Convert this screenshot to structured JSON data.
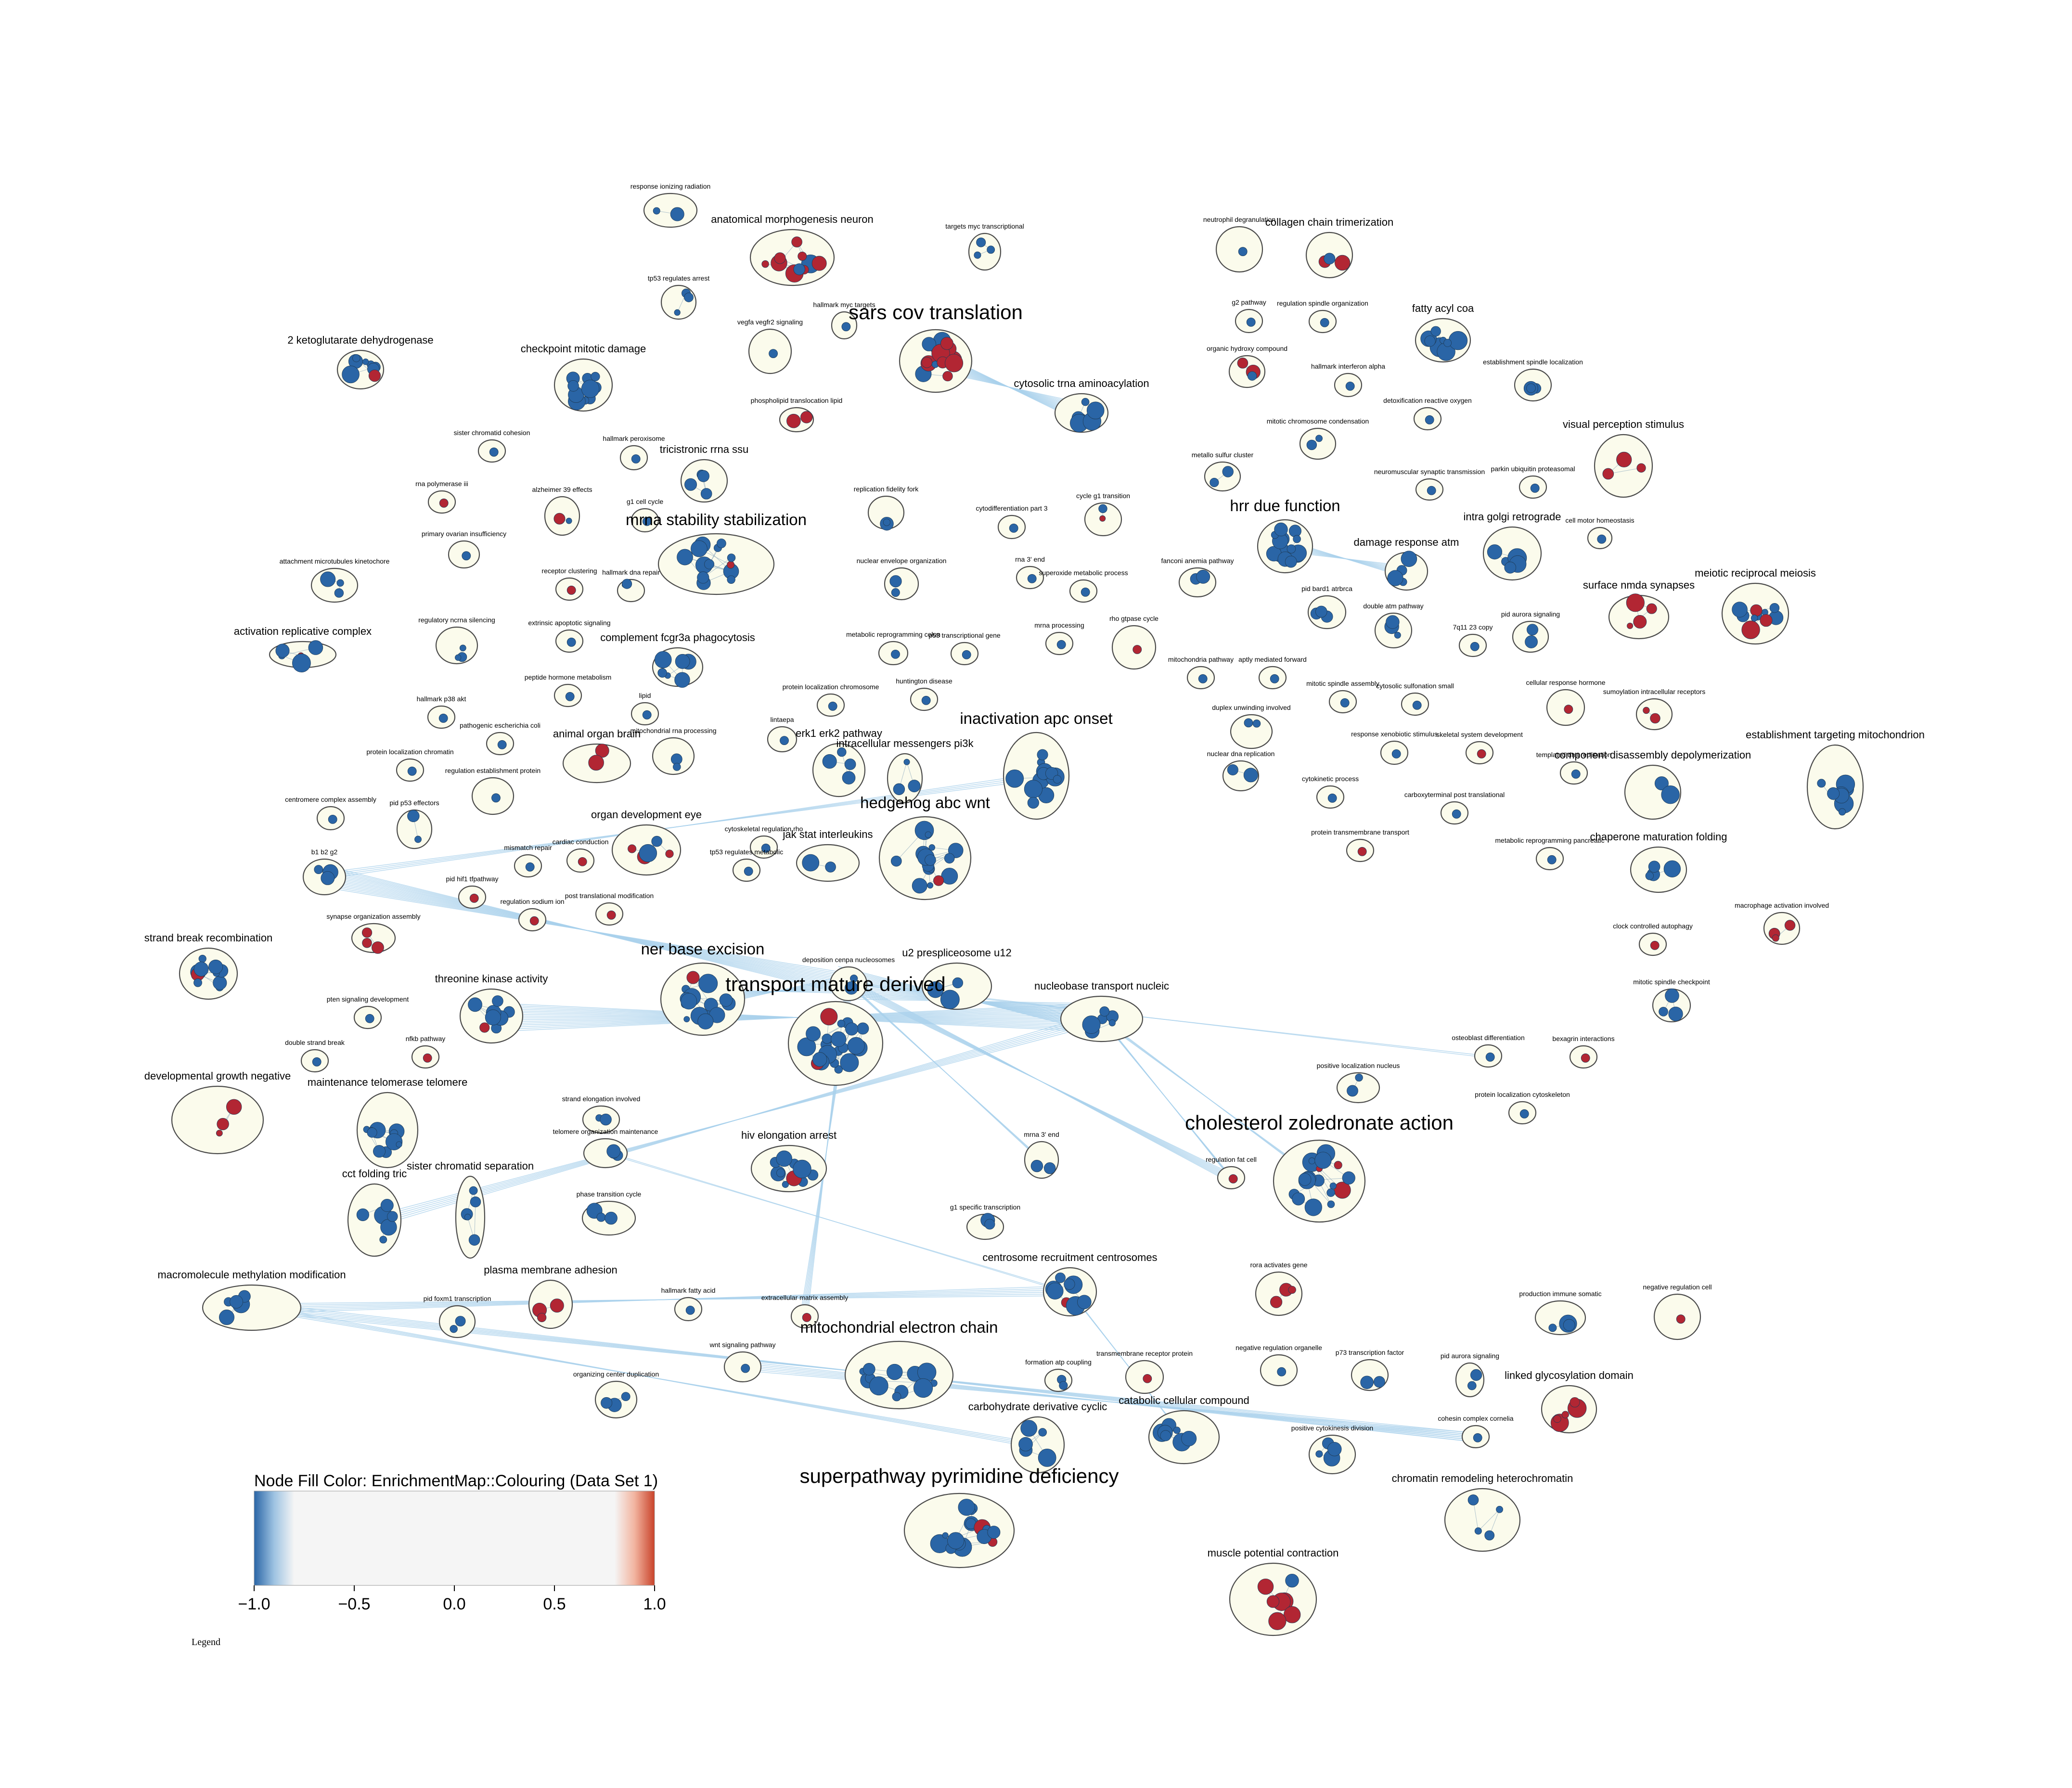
{
  "colors": {
    "negative": "#2a65a6",
    "neutral": "#f5f5f5",
    "positive": "#b22633",
    "edge": "#a9d1ec",
    "cluster_fill": "#fbfbec"
  },
  "legend": {
    "title": "Node Fill Color:  EnrichmentMap::Colouring (Data Set 1)",
    "ticks": [
      "−1.0",
      "−0.5",
      "0.0",
      "0.5",
      "1.0"
    ],
    "caption": "Legend"
  },
  "clusters": [
    {
      "label": "response ionizing radiation",
      "size": "s",
      "tone": "b",
      "n": 2
    },
    {
      "label": "anatomical morphogenesis neuron",
      "size": "m",
      "tone": "r",
      "n": 10
    },
    {
      "label": "targets myc transcriptional",
      "size": "s",
      "tone": "b",
      "n": 3
    },
    {
      "label": "tp53 regulates arrest",
      "size": "s",
      "tone": "b",
      "n": 3
    },
    {
      "label": "hallmark myc targets",
      "size": "s",
      "tone": "b",
      "n": 1
    },
    {
      "label": "sars cov translation",
      "size": "xl",
      "tone": "r",
      "n": 16
    },
    {
      "label": "vegfa vegfr2 signaling",
      "size": "s",
      "tone": "b",
      "n": 1
    },
    {
      "label": "2 ketoglutarate dehydrogenase",
      "size": "m",
      "tone": "b",
      "n": 8
    },
    {
      "label": "checkpoint mitotic damage",
      "size": "m",
      "tone": "b",
      "n": 10
    },
    {
      "label": "phospholipid translocation lipid",
      "size": "s",
      "tone": "r",
      "n": 2
    },
    {
      "label": "cytosolic trna aminoacylation",
      "size": "m",
      "tone": "b",
      "n": 7
    },
    {
      "label": "neutrophil degranulation",
      "size": "s",
      "tone": "b",
      "n": 1
    },
    {
      "label": "collagen chain trimerization",
      "size": "m",
      "tone": "r",
      "n": 3
    },
    {
      "label": "g2 pathway",
      "size": "s",
      "tone": "b",
      "n": 1
    },
    {
      "label": "regulation spindle organization",
      "size": "s",
      "tone": "b",
      "n": 1
    },
    {
      "label": "fatty acyl coa",
      "size": "m",
      "tone": "b",
      "n": 8
    },
    {
      "label": "organic hydroxy compound",
      "size": "s",
      "tone": "r",
      "n": 3
    },
    {
      "label": "hallmark interferon alpha",
      "size": "s",
      "tone": "r",
      "n": 1
    },
    {
      "label": "establishment spindle localization",
      "size": "s",
      "tone": "b",
      "n": 3
    },
    {
      "label": "detoxification reactive oxygen",
      "size": "s",
      "tone": "b",
      "n": 1
    },
    {
      "label": "mitotic chromosome condensation",
      "size": "s",
      "tone": "b",
      "n": 2
    },
    {
      "label": "sister chromatid cohesion",
      "size": "s",
      "tone": "b",
      "n": 1
    },
    {
      "label": "hallmark peroxisome",
      "size": "s",
      "tone": "b",
      "n": 1
    },
    {
      "label": "tricistronic rrna ssu",
      "size": "m",
      "tone": "b",
      "n": 4
    },
    {
      "label": "visual perception stimulus",
      "size": "m",
      "tone": "r",
      "n": 3
    },
    {
      "label": "metallo sulfur cluster",
      "size": "s",
      "tone": "b",
      "n": 2
    },
    {
      "label": "rna polymerase iii",
      "size": "s",
      "tone": "r",
      "n": 1
    },
    {
      "label": "alzheimer 39 effects",
      "size": "s",
      "tone": "b",
      "n": 2
    },
    {
      "label": "g1 cell cycle",
      "size": "s",
      "tone": "b",
      "n": 1
    },
    {
      "label": "replication fidelity fork",
      "size": "s",
      "tone": "b",
      "n": 2
    },
    {
      "label": "cytodifferentiation part 3",
      "size": "s",
      "tone": "r",
      "n": 1
    },
    {
      "label": "cycle g1 transition",
      "size": "s",
      "tone": "b",
      "n": 2
    },
    {
      "label": "neuromuscular synaptic transmission",
      "size": "s",
      "tone": "r",
      "n": 1
    },
    {
      "label": "parkin ubiquitin proteasomal",
      "size": "s",
      "tone": "b",
      "n": 1
    },
    {
      "label": "mrna stability stabilization",
      "size": "l",
      "tone": "b",
      "n": 14
    },
    {
      "label": "hrr due function",
      "size": "l",
      "tone": "b",
      "n": 16
    },
    {
      "label": "intra golgi retrograde",
      "size": "m",
      "tone": "b",
      "n": 5
    },
    {
      "label": "cell motor homeostasis",
      "size": "s",
      "tone": "b",
      "n": 1
    },
    {
      "label": "primary ovarian insufficiency",
      "size": "s",
      "tone": "b",
      "n": 1
    },
    {
      "label": "attachment microtubules kinetochore",
      "size": "s",
      "tone": "b",
      "n": 3
    },
    {
      "label": "receptor clustering",
      "size": "s",
      "tone": "r",
      "n": 1
    },
    {
      "label": "hallmark dna repair",
      "size": "s",
      "tone": "b",
      "n": 2
    },
    {
      "label": "nuclear envelope organization",
      "size": "s",
      "tone": "b",
      "n": 2
    },
    {
      "label": "rna 3' end",
      "size": "s",
      "tone": "b",
      "n": 1
    },
    {
      "label": "superoxide metabolic process",
      "size": "s",
      "tone": "b",
      "n": 1
    },
    {
      "label": "fanconi anemia pathway",
      "size": "s",
      "tone": "b",
      "n": 2
    },
    {
      "label": "damage response atm",
      "size": "m",
      "tone": "b",
      "n": 4
    },
    {
      "label": "meiotic reciprocal meiosis",
      "size": "m",
      "tone": "b",
      "n": 10
    },
    {
      "label": "surface nmda synapses",
      "size": "m",
      "tone": "r",
      "n": 4
    },
    {
      "label": "pid bard1 atrbrca",
      "size": "s",
      "tone": "b",
      "n": 3
    },
    {
      "label": "double atm pathway",
      "size": "s",
      "tone": "b",
      "n": 3
    },
    {
      "label": "7q11 23 copy",
      "size": "s",
      "tone": "b",
      "n": 1
    },
    {
      "label": "pid aurora signaling",
      "size": "s",
      "tone": "b",
      "n": 2
    },
    {
      "label": "activation replicative complex",
      "size": "m",
      "tone": "b",
      "n": 5
    },
    {
      "label": "regulatory ncrna silencing",
      "size": "s",
      "tone": "b",
      "n": 3
    },
    {
      "label": "extrinsic apoptotic signaling",
      "size": "s",
      "tone": "b",
      "n": 1
    },
    {
      "label": "complement fcgr3a phagocytosis",
      "size": "m",
      "tone": "b",
      "n": 6
    },
    {
      "label": "metabolic reprogramming colon",
      "size": "s",
      "tone": "b",
      "n": 1
    },
    {
      "label": "p53 transcriptional gene",
      "size": "s",
      "tone": "b",
      "n": 1
    },
    {
      "label": "mrna processing",
      "size": "s",
      "tone": "b",
      "n": 1
    },
    {
      "label": "rho gtpase cycle",
      "size": "s",
      "tone": "b",
      "n": 1
    },
    {
      "label": "mitochondria pathway",
      "size": "s",
      "tone": "b",
      "n": 1
    },
    {
      "label": "aptly mediated forward",
      "size": "s",
      "tone": "b",
      "n": 1
    },
    {
      "label": "cellular response hormone",
      "size": "s",
      "tone": "r",
      "n": 1
    },
    {
      "label": "sumoylation intracellular receptors",
      "size": "s",
      "tone": "r",
      "n": 2
    },
    {
      "label": "hallmark p38 akt",
      "size": "s",
      "tone": "b",
      "n": 1
    },
    {
      "label": "peptide hormone metabolism",
      "size": "s",
      "tone": "r",
      "n": 1
    },
    {
      "label": "lipid",
      "size": "s",
      "tone": "b",
      "n": 1
    },
    {
      "label": "protein localization chromosome",
      "size": "s",
      "tone": "b",
      "n": 1
    },
    {
      "label": "huntington disease",
      "size": "s",
      "tone": "b",
      "n": 1
    },
    {
      "label": "mitotic spindle assembly",
      "size": "s",
      "tone": "b",
      "n": 1
    },
    {
      "label": "cytosolic sulfonation small",
      "size": "s",
      "tone": "r",
      "n": 1
    },
    {
      "label": "pathogenic escherichia coli",
      "size": "s",
      "tone": "b",
      "n": 1
    },
    {
      "label": "inactivation apc onset",
      "size": "l",
      "tone": "b",
      "n": 12
    },
    {
      "label": "duplex unwinding involved",
      "size": "s",
      "tone": "b",
      "n": 2
    },
    {
      "label": "establishment targeting mitochondrion",
      "size": "m",
      "tone": "b",
      "n": 8
    },
    {
      "label": "protein localization chromatin",
      "size": "s",
      "tone": "b",
      "n": 1
    },
    {
      "label": "lintaepa",
      "size": "s",
      "tone": "b",
      "n": 1
    },
    {
      "label": "mitochondrial rna processing",
      "size": "s",
      "tone": "b",
      "n": 2
    },
    {
      "label": "animal organ brain",
      "size": "m",
      "tone": "r",
      "n": 2
    },
    {
      "label": "erk1 erk2 pathway",
      "size": "m",
      "tone": "b",
      "n": 4
    },
    {
      "label": "intracellular messengers pi3k",
      "size": "m",
      "tone": "b",
      "n": 3
    },
    {
      "label": "response xenobiotic stimulus",
      "size": "s",
      "tone": "r",
      "n": 1
    },
    {
      "label": "skeletal system development",
      "size": "s",
      "tone": "r",
      "n": 1
    },
    {
      "label": "templated dna replication",
      "size": "s",
      "tone": "b",
      "n": 1
    },
    {
      "label": "regulation establishment protein",
      "size": "s",
      "tone": "b",
      "n": 1
    },
    {
      "label": "nuclear dna replication",
      "size": "s",
      "tone": "b",
      "n": 2
    },
    {
      "label": "centromere complex assembly",
      "size": "s",
      "tone": "b",
      "n": 1
    },
    {
      "label": "pid p53 effectors",
      "size": "s",
      "tone": "b",
      "n": 2
    },
    {
      "label": "carboxyterminal post translational",
      "size": "s",
      "tone": "b",
      "n": 1
    },
    {
      "label": "component disassembly depolymerization",
      "size": "m",
      "tone": "b",
      "n": 3
    },
    {
      "label": "cytokinetic process",
      "size": "s",
      "tone": "b",
      "n": 1
    },
    {
      "label": "organ development eye",
      "size": "m",
      "tone": "r",
      "n": 6
    },
    {
      "label": "cytoskeletal regulation rho",
      "size": "s",
      "tone": "b",
      "n": 1
    },
    {
      "label": "hedgehog abc wnt",
      "size": "l",
      "tone": "b",
      "n": 16
    },
    {
      "label": "b1 b2 g2",
      "size": "s",
      "tone": "b",
      "n": 3
    },
    {
      "label": "mismatch repair",
      "size": "s",
      "tone": "b",
      "n": 1
    },
    {
      "label": "cardiac conduction",
      "size": "s",
      "tone": "r",
      "n": 1
    },
    {
      "label": "tp53 regulates metabolic",
      "size": "s",
      "tone": "b",
      "n": 1
    },
    {
      "label": "jak stat interleukins",
      "size": "m",
      "tone": "b",
      "n": 3
    },
    {
      "label": "protein transmembrane transport",
      "size": "s",
      "tone": "b",
      "n": 1
    },
    {
      "label": "metabolic reprogramming pancreatic",
      "size": "s",
      "tone": "b",
      "n": 1
    },
    {
      "label": "chaperone maturation folding",
      "size": "m",
      "tone": "b",
      "n": 4
    },
    {
      "label": "pid hif1 tfpathway",
      "size": "s",
      "tone": "r",
      "n": 1
    },
    {
      "label": "post translational modification",
      "size": "s",
      "tone": "r",
      "n": 1
    },
    {
      "label": "regulation sodium ion",
      "size": "s",
      "tone": "r",
      "n": 1
    },
    {
      "label": "synapse organization assembly",
      "size": "s",
      "tone": "r",
      "n": 3
    },
    {
      "label": "macrophage activation involved",
      "size": "s",
      "tone": "r",
      "n": 3
    },
    {
      "label": "clock controlled autophagy",
      "size": "s",
      "tone": "r",
      "n": 1
    },
    {
      "label": "strand break recombination",
      "size": "m",
      "tone": "b",
      "n": 10
    },
    {
      "label": "ner base excision",
      "size": "l",
      "tone": "b",
      "n": 16
    },
    {
      "label": "deposition cenpa nucleosomes",
      "size": "s",
      "tone": "b",
      "n": 2
    },
    {
      "label": "u2 prespliceosome u12",
      "size": "m",
      "tone": "b",
      "n": 4
    },
    {
      "label": "transport mature derived",
      "size": "xl",
      "tone": "b",
      "n": 24
    },
    {
      "label": "nucleobase transport nucleic",
      "size": "m",
      "tone": "b",
      "n": 6
    },
    {
      "label": "mitotic spindle checkpoint",
      "size": "s",
      "tone": "b",
      "n": 3
    },
    {
      "label": "threonine kinase activity",
      "size": "m",
      "tone": "b",
      "n": 8
    },
    {
      "label": "pten signaling development",
      "size": "s",
      "tone": "b",
      "n": 1
    },
    {
      "label": "nfkb pathway",
      "size": "s",
      "tone": "r",
      "n": 1
    },
    {
      "label": "double strand break",
      "size": "s",
      "tone": "b",
      "n": 1
    },
    {
      "label": "osteoblast differentiation",
      "size": "s",
      "tone": "b",
      "n": 1
    },
    {
      "label": "bexagrin interactions",
      "size": "s",
      "tone": "b",
      "n": 1
    },
    {
      "label": "developmental growth negative",
      "size": "m",
      "tone": "r",
      "n": 3
    },
    {
      "label": "maintenance telomerase telomere",
      "size": "m",
      "tone": "b",
      "n": 10
    },
    {
      "label": "positive localization nucleus",
      "size": "s",
      "tone": "b",
      "n": 2
    },
    {
      "label": "protein localization cytoskeleton",
      "size": "s",
      "tone": "b",
      "n": 1
    },
    {
      "label": "strand elongation involved",
      "size": "s",
      "tone": "b",
      "n": 2
    },
    {
      "label": "telomere organization maintenance",
      "size": "s",
      "tone": "b",
      "n": 3
    },
    {
      "label": "mrna 3' end",
      "size": "s",
      "tone": "b",
      "n": 2
    },
    {
      "label": "hiv elongation arrest",
      "size": "m",
      "tone": "b",
      "n": 10
    },
    {
      "label": "cholesterol zoledronate action",
      "size": "xl",
      "tone": "b",
      "n": 20
    },
    {
      "label": "cct folding tric",
      "size": "m",
      "tone": "b",
      "n": 6
    },
    {
      "label": "sister chromatid separation",
      "size": "m",
      "tone": "b",
      "n": 5
    },
    {
      "label": "regulation fat cell",
      "size": "s",
      "tone": "r",
      "n": 1
    },
    {
      "label": "phase transition cycle",
      "size": "s",
      "tone": "b",
      "n": 3
    },
    {
      "label": "g1 specific transcription",
      "size": "s",
      "tone": "b",
      "n": 2
    },
    {
      "label": "centrosome recruitment centrosomes",
      "size": "m",
      "tone": "b",
      "n": 8
    },
    {
      "label": "rora activates gene",
      "size": "s",
      "tone": "r",
      "n": 3
    },
    {
      "label": "plasma membrane adhesion",
      "size": "m",
      "tone": "r",
      "n": 3
    },
    {
      "label": "hallmark fatty acid",
      "size": "s",
      "tone": "b",
      "n": 1
    },
    {
      "label": "extracellular matrix assembly",
      "size": "s",
      "tone": "r",
      "n": 1
    },
    {
      "label": "macromolecule methylation modification",
      "size": "m",
      "tone": "b",
      "n": 5
    },
    {
      "label": "pid foxm1 transcription",
      "size": "s",
      "tone": "b",
      "n": 2
    },
    {
      "label": "production immune somatic",
      "size": "s",
      "tone": "b",
      "n": 3
    },
    {
      "label": "negative regulation cell",
      "size": "s",
      "tone": "r",
      "n": 1
    },
    {
      "label": "mitochondrial electron chain",
      "size": "l",
      "tone": "b",
      "n": 12
    },
    {
      "label": "formation atp coupling",
      "size": "s",
      "tone": "b",
      "n": 2
    },
    {
      "label": "transmembrane receptor protein",
      "size": "s",
      "tone": "r",
      "n": 1
    },
    {
      "label": "negative regulation organelle",
      "size": "s",
      "tone": "b",
      "n": 1
    },
    {
      "label": "p73 transcription factor",
      "size": "s",
      "tone": "b",
      "n": 2
    },
    {
      "label": "pid aurora signaling",
      "size": "s",
      "tone": "b",
      "n": 2
    },
    {
      "label": "wnt signaling pathway",
      "size": "s",
      "tone": "r",
      "n": 1
    },
    {
      "label": "organizing center duplication",
      "size": "s",
      "tone": "b",
      "n": 3
    },
    {
      "label": "linked glycosylation domain",
      "size": "m",
      "tone": "r",
      "n": 5
    },
    {
      "label": "carbohydrate derivative cyclic",
      "size": "m",
      "tone": "b",
      "n": 5
    },
    {
      "label": "catabolic cellular compound",
      "size": "m",
      "tone": "b",
      "n": 8
    },
    {
      "label": "positive cytokinesis division",
      "size": "s",
      "tone": "b",
      "n": 4
    },
    {
      "label": "cohesin complex cornelia",
      "size": "s",
      "tone": "b",
      "n": 1
    },
    {
      "label": "superpathway pyrimidine deficiency",
      "size": "xl",
      "tone": "b",
      "n": 16
    },
    {
      "label": "chromatin remodeling heterochromatin",
      "size": "m",
      "tone": "b",
      "n": 4
    },
    {
      "label": "muscle potential contraction",
      "size": "m",
      "tone": "r",
      "n": 8
    }
  ]
}
